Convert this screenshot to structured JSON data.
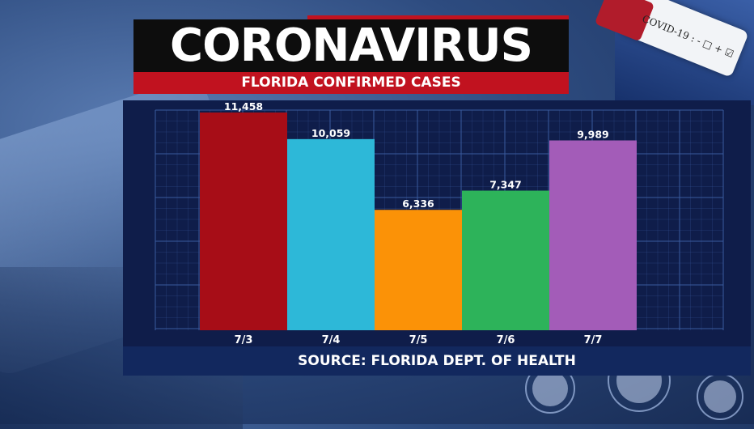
{
  "header": {
    "title": "CORONAVIRUS",
    "subtitle": "FLORIDA CONFIRMED CASES"
  },
  "footer": {
    "source": "SOURCE: FLORIDA DEPT. OF HEALTH"
  },
  "decor": {
    "test_tube_label": "COVID-19 : - □ + ☑"
  },
  "colors": {
    "title_bg": "#0d0d0d",
    "accent_red": "#c1121f",
    "chart_bg": "#0f1d4a",
    "grid": "#3a5a9e",
    "source_bg": "#12285e"
  },
  "chart_data": {
    "type": "bar",
    "title": "FLORIDA CONFIRMED CASES",
    "categories": [
      "7/3",
      "7/4",
      "7/5",
      "7/6",
      "7/7"
    ],
    "values": [
      11458,
      10059,
      6336,
      7347,
      9989
    ],
    "data_labels": [
      "11,458",
      "10,059",
      "6,336",
      "7,347",
      "9,989"
    ],
    "bar_colors": [
      "#a70d17",
      "#2db8d8",
      "#fb9207",
      "#2db35a",
      "#a35cb8"
    ],
    "ylim": [
      0,
      11458
    ],
    "grid": true,
    "xlabel": "",
    "ylabel": ""
  }
}
